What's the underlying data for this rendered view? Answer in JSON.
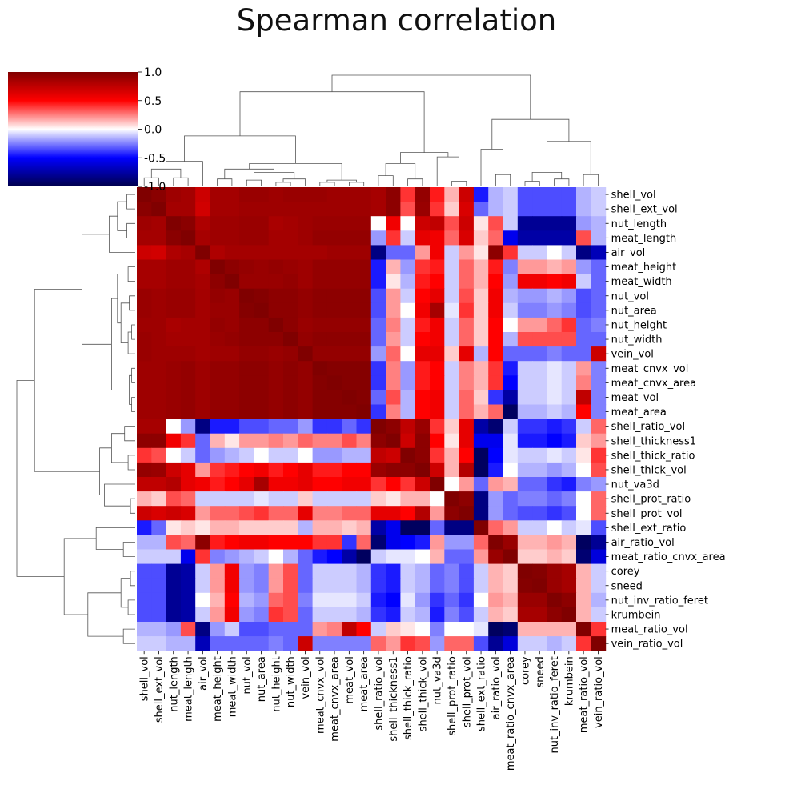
{
  "chart_data": {
    "type": "heatmap",
    "title": "Spearman correlation",
    "labels": [
      "shell_vol",
      "shell_ext_vol",
      "nut_length",
      "meat_length",
      "air_vol",
      "meat_height",
      "meat_width",
      "nut_vol",
      "nut_area",
      "nut_height",
      "nut_width",
      "vein_vol",
      "meat_cnvx_vol",
      "meat_cnvx_area",
      "meat_vol",
      "meat_area",
      "shell_ratio_vol",
      "shell_thickness1",
      "shell_thick_ratio",
      "shell_thick_vol",
      "nut_va3d",
      "shell_prot_ratio",
      "shell_prot_vol",
      "shell_ext_ratio",
      "air_ratio_vol",
      "meat_ratio_cnvx_area",
      "corey",
      "sneed",
      "nut_inv_ratio_feret",
      "krumbein",
      "meat_ratio_vol",
      "vein_ratio_vol"
    ],
    "colormap": "seismic",
    "vmin": -1.0,
    "vmax": 1.0,
    "colorbar_ticks": [
      "1.0",
      "0.5",
      "0.0",
      "-0.5",
      "-1.0"
    ],
    "values": [
      [
        1.0,
        0.96,
        0.88,
        0.86,
        0.7,
        0.86,
        0.86,
        0.9,
        0.9,
        0.88,
        0.9,
        0.9,
        0.9,
        0.88,
        0.88,
        0.88,
        0.85,
        0.95,
        0.4,
        0.92,
        0.45,
        0.15,
        0.7,
        -0.45,
        -0.15,
        -0.1,
        -0.35,
        -0.35,
        -0.35,
        -0.35,
        -0.15,
        -0.1
      ],
      [
        0.96,
        1.0,
        0.86,
        0.86,
        0.68,
        0.86,
        0.86,
        0.88,
        0.88,
        0.88,
        0.88,
        0.88,
        0.88,
        0.88,
        0.88,
        0.88,
        0.85,
        0.95,
        0.35,
        0.9,
        0.4,
        0.1,
        0.65,
        -0.3,
        -0.15,
        -0.1,
        -0.35,
        -0.35,
        -0.35,
        -0.35,
        -0.15,
        -0.1
      ],
      [
        0.88,
        0.86,
        1.0,
        0.96,
        0.82,
        0.88,
        0.88,
        0.9,
        0.9,
        0.84,
        0.86,
        0.88,
        0.9,
        0.9,
        0.9,
        0.9,
        0.0,
        0.55,
        0.0,
        0.7,
        0.75,
        0.35,
        0.7,
        0.05,
        0.35,
        -0.1,
        -0.8,
        -0.8,
        -0.8,
        -0.8,
        -0.2,
        -0.15
      ],
      [
        0.86,
        0.86,
        0.96,
        1.0,
        0.85,
        0.88,
        0.88,
        0.9,
        0.9,
        0.86,
        0.86,
        0.88,
        0.92,
        0.92,
        0.92,
        0.92,
        -0.2,
        0.4,
        -0.1,
        0.6,
        0.55,
        0.3,
        0.65,
        0.1,
        0.3,
        -0.55,
        -0.75,
        -0.75,
        -0.75,
        -0.75,
        0.35,
        -0.15
      ],
      [
        0.7,
        0.68,
        0.82,
        0.85,
        1.0,
        0.82,
        0.86,
        0.86,
        0.86,
        0.86,
        0.86,
        0.86,
        0.86,
        0.88,
        0.88,
        0.88,
        -0.85,
        -0.3,
        -0.3,
        0.2,
        0.55,
        -0.1,
        0.2,
        0.05,
        0.95,
        0.4,
        -0.1,
        -0.1,
        0.0,
        -0.1,
        -0.85,
        -0.7
      ],
      [
        0.85,
        0.85,
        0.88,
        0.88,
        0.82,
        1.0,
        0.95,
        0.92,
        0.9,
        0.92,
        0.9,
        0.88,
        0.92,
        0.92,
        0.92,
        0.92,
        -0.45,
        0.15,
        -0.2,
        0.4,
        0.45,
        -0.1,
        0.3,
        0.15,
        0.45,
        -0.25,
        0.2,
        0.2,
        0.15,
        0.2,
        -0.2,
        -0.3
      ],
      [
        0.85,
        0.85,
        0.88,
        0.88,
        0.85,
        0.95,
        1.0,
        0.9,
        0.9,
        0.9,
        0.92,
        0.88,
        0.92,
        0.92,
        0.92,
        0.92,
        -0.45,
        0.05,
        -0.15,
        0.45,
        0.5,
        -0.1,
        0.3,
        0.15,
        0.5,
        -0.2,
        0.55,
        0.55,
        0.5,
        0.55,
        -0.1,
        -0.3
      ],
      [
        0.9,
        0.88,
        0.9,
        0.9,
        0.86,
        0.92,
        0.9,
        1.0,
        0.98,
        0.95,
        0.95,
        0.92,
        0.95,
        0.95,
        0.95,
        0.95,
        -0.35,
        0.2,
        -0.1,
        0.5,
        0.6,
        -0.1,
        0.35,
        0.1,
        0.55,
        -0.15,
        -0.2,
        -0.2,
        -0.15,
        -0.2,
        -0.35,
        -0.3
      ],
      [
        0.9,
        0.88,
        0.9,
        0.9,
        0.86,
        0.9,
        0.9,
        0.98,
        1.0,
        0.95,
        0.95,
        0.92,
        0.95,
        0.95,
        0.95,
        0.95,
        -0.35,
        0.2,
        0.0,
        0.55,
        0.85,
        -0.05,
        0.4,
        0.1,
        0.55,
        -0.1,
        -0.25,
        -0.25,
        -0.2,
        -0.25,
        -0.35,
        -0.3
      ],
      [
        0.88,
        0.88,
        0.84,
        0.86,
        0.86,
        0.92,
        0.9,
        0.95,
        0.95,
        1.0,
        0.95,
        0.9,
        0.92,
        0.92,
        0.92,
        0.92,
        -0.3,
        0.25,
        -0.1,
        0.45,
        0.55,
        -0.1,
        0.3,
        0.1,
        0.5,
        0.0,
        0.2,
        0.2,
        0.3,
        0.4,
        -0.3,
        -0.25
      ],
      [
        0.9,
        0.88,
        0.86,
        0.86,
        0.86,
        0.9,
        0.92,
        0.95,
        0.95,
        0.95,
        1.0,
        0.92,
        0.95,
        0.95,
        0.95,
        0.95,
        -0.3,
        0.2,
        -0.1,
        0.5,
        0.55,
        -0.1,
        0.3,
        0.1,
        0.5,
        -0.15,
        0.35,
        0.35,
        0.35,
        0.35,
        -0.3,
        -0.3
      ],
      [
        0.9,
        0.88,
        0.88,
        0.88,
        0.86,
        0.88,
        0.88,
        0.92,
        0.92,
        0.9,
        0.92,
        1.0,
        0.92,
        0.92,
        0.92,
        0.92,
        -0.2,
        0.3,
        0.0,
        0.6,
        0.6,
        0.1,
        0.6,
        -0.15,
        0.5,
        -0.3,
        -0.3,
        -0.3,
        -0.25,
        -0.3,
        -0.3,
        0.7
      ],
      [
        0.88,
        0.88,
        0.9,
        0.92,
        0.88,
        0.92,
        0.92,
        0.95,
        0.95,
        0.92,
        0.95,
        0.92,
        1.0,
        0.98,
        0.98,
        0.98,
        -0.4,
        0.25,
        -0.2,
        0.45,
        0.5,
        -0.1,
        0.25,
        0.15,
        0.4,
        -0.45,
        -0.1,
        -0.1,
        -0.05,
        -0.1,
        0.2,
        -0.25
      ],
      [
        0.88,
        0.88,
        0.9,
        0.92,
        0.88,
        0.92,
        0.92,
        0.95,
        0.95,
        0.92,
        0.95,
        0.92,
        0.98,
        1.0,
        0.98,
        0.98,
        -0.4,
        0.25,
        -0.2,
        0.45,
        0.5,
        -0.1,
        0.25,
        0.15,
        0.4,
        -0.5,
        -0.1,
        -0.1,
        -0.05,
        -0.1,
        0.25,
        -0.25
      ],
      [
        0.88,
        0.88,
        0.9,
        0.92,
        0.88,
        0.92,
        0.92,
        0.95,
        0.95,
        0.92,
        0.95,
        0.92,
        0.98,
        0.98,
        1.0,
        0.98,
        -0.3,
        0.35,
        -0.15,
        0.5,
        0.55,
        -0.1,
        0.3,
        0.1,
        -0.4,
        -0.75,
        -0.1,
        -0.1,
        -0.05,
        -0.1,
        0.75,
        -0.25
      ],
      [
        0.88,
        0.88,
        0.9,
        0.92,
        0.88,
        0.92,
        0.92,
        0.95,
        0.95,
        0.92,
        0.95,
        0.92,
        0.98,
        0.98,
        0.98,
        1.0,
        -0.4,
        0.25,
        -0.15,
        0.5,
        0.55,
        -0.1,
        0.3,
        0.15,
        0.3,
        -0.95,
        -0.15,
        -0.15,
        -0.1,
        -0.15,
        0.5,
        -0.25
      ],
      [
        0.85,
        0.85,
        0.0,
        -0.2,
        -0.85,
        -0.45,
        -0.45,
        -0.35,
        -0.35,
        -0.3,
        -0.3,
        -0.2,
        -0.4,
        -0.4,
        -0.3,
        -0.4,
        1.0,
        0.95,
        0.75,
        0.9,
        0.4,
        0.1,
        0.6,
        -0.75,
        -0.9,
        -0.1,
        -0.4,
        -0.4,
        -0.45,
        -0.4,
        -0.1,
        0.3
      ],
      [
        0.95,
        0.95,
        0.55,
        0.4,
        -0.3,
        0.15,
        0.05,
        0.2,
        0.2,
        0.25,
        0.2,
        0.3,
        0.25,
        0.25,
        0.35,
        0.25,
        0.95,
        1.0,
        0.7,
        0.95,
        0.5,
        0.05,
        0.6,
        -0.55,
        -0.55,
        -0.05,
        -0.45,
        -0.45,
        -0.5,
        -0.45,
        0.1,
        0.2
      ],
      [
        0.4,
        0.35,
        0.0,
        -0.1,
        -0.3,
        -0.2,
        -0.15,
        -0.1,
        0.0,
        -0.1,
        -0.1,
        0.0,
        -0.2,
        -0.2,
        -0.15,
        -0.15,
        0.75,
        0.7,
        1.0,
        0.95,
        0.4,
        0.15,
        0.5,
        -0.95,
        -0.5,
        -0.05,
        -0.1,
        -0.1,
        -0.05,
        -0.1,
        0.05,
        0.4
      ],
      [
        0.92,
        0.9,
        0.7,
        0.6,
        0.2,
        0.4,
        0.45,
        0.5,
        0.55,
        0.45,
        0.5,
        0.6,
        0.45,
        0.45,
        0.5,
        0.5,
        0.9,
        0.95,
        0.95,
        1.0,
        0.7,
        0.15,
        0.8,
        -0.95,
        -0.45,
        0.0,
        -0.15,
        -0.15,
        -0.2,
        -0.15,
        0.0,
        0.35
      ],
      [
        0.75,
        0.75,
        0.8,
        0.6,
        0.55,
        0.45,
        0.5,
        0.6,
        0.85,
        0.55,
        0.55,
        0.6,
        0.5,
        0.5,
        0.55,
        0.55,
        0.4,
        0.5,
        0.4,
        0.7,
        1.0,
        0.0,
        0.2,
        -0.3,
        0.2,
        0.15,
        -0.3,
        -0.3,
        -0.4,
        -0.45,
        -0.25,
        -0.2
      ],
      [
        0.15,
        0.1,
        0.35,
        0.3,
        -0.1,
        -0.1,
        -0.1,
        -0.1,
        -0.05,
        -0.1,
        -0.1,
        0.1,
        -0.1,
        -0.1,
        -0.1,
        -0.1,
        0.1,
        0.05,
        0.15,
        0.15,
        0.0,
        1.0,
        0.95,
        -0.85,
        -0.2,
        -0.3,
        -0.25,
        -0.25,
        -0.3,
        -0.25,
        0.0,
        0.3
      ],
      [
        0.7,
        0.65,
        0.7,
        0.65,
        0.2,
        0.3,
        0.3,
        0.35,
        0.4,
        0.3,
        0.3,
        0.6,
        0.25,
        0.25,
        0.3,
        0.3,
        0.6,
        0.6,
        0.5,
        0.8,
        0.2,
        0.95,
        1.0,
        -0.85,
        -0.2,
        -0.3,
        -0.35,
        -0.35,
        -0.4,
        -0.35,
        0.0,
        0.3
      ],
      [
        -0.45,
        -0.3,
        0.05,
        0.1,
        0.05,
        0.15,
        0.15,
        0.1,
        0.1,
        0.1,
        0.1,
        -0.15,
        0.15,
        0.15,
        0.1,
        0.15,
        -0.75,
        -0.55,
        -0.95,
        -0.95,
        -0.3,
        -0.85,
        -0.85,
        1.0,
        0.3,
        0.2,
        -0.1,
        -0.1,
        0.0,
        -0.1,
        -0.05,
        -0.35
      ],
      [
        -0.15,
        -0.15,
        0.35,
        0.3,
        0.95,
        0.45,
        0.5,
        0.55,
        0.55,
        0.5,
        0.5,
        0.5,
        0.4,
        0.4,
        -0.4,
        0.3,
        -0.9,
        -0.55,
        -0.5,
        -0.45,
        0.2,
        -0.2,
        -0.2,
        0.3,
        1.0,
        0.9,
        0.15,
        0.15,
        0.2,
        0.15,
        -0.95,
        -0.8
      ],
      [
        -0.1,
        -0.1,
        -0.1,
        -0.55,
        0.4,
        -0.25,
        -0.2,
        -0.15,
        -0.1,
        0.0,
        -0.15,
        -0.3,
        -0.45,
        -0.5,
        -0.75,
        -0.95,
        -0.1,
        -0.05,
        -0.05,
        0.0,
        0.15,
        -0.3,
        -0.3,
        0.2,
        0.9,
        1.0,
        0.1,
        0.1,
        0.15,
        0.1,
        -0.9,
        -0.6
      ],
      [
        -0.35,
        -0.35,
        -0.8,
        -0.75,
        -0.1,
        0.2,
        0.55,
        -0.2,
        -0.25,
        0.2,
        0.35,
        -0.3,
        -0.1,
        -0.1,
        -0.1,
        -0.15,
        -0.4,
        -0.45,
        -0.1,
        -0.15,
        -0.3,
        -0.25,
        -0.35,
        -0.1,
        0.15,
        0.1,
        1.0,
        0.98,
        0.9,
        0.85,
        0.15,
        -0.1
      ],
      [
        -0.35,
        -0.35,
        -0.8,
        -0.75,
        -0.1,
        0.2,
        0.55,
        -0.2,
        -0.25,
        0.2,
        0.35,
        -0.3,
        -0.1,
        -0.1,
        -0.1,
        -0.15,
        -0.4,
        -0.45,
        -0.1,
        -0.15,
        -0.3,
        -0.25,
        -0.35,
        -0.1,
        0.15,
        0.1,
        0.98,
        1.0,
        0.9,
        0.85,
        0.15,
        -0.1
      ],
      [
        -0.35,
        -0.35,
        -0.8,
        -0.75,
        0.0,
        0.15,
        0.5,
        -0.15,
        -0.2,
        0.3,
        0.35,
        -0.25,
        -0.05,
        -0.05,
        -0.05,
        -0.1,
        -0.45,
        -0.5,
        -0.05,
        -0.2,
        -0.4,
        -0.3,
        -0.4,
        0.0,
        0.2,
        0.15,
        0.9,
        0.9,
        1.0,
        0.95,
        0.15,
        -0.15
      ],
      [
        -0.35,
        -0.35,
        -0.8,
        -0.75,
        -0.1,
        0.2,
        0.55,
        -0.2,
        -0.25,
        0.4,
        0.35,
        -0.3,
        -0.1,
        -0.1,
        -0.1,
        -0.15,
        -0.4,
        -0.45,
        -0.1,
        -0.15,
        -0.45,
        -0.25,
        -0.35,
        -0.1,
        0.15,
        0.1,
        0.85,
        0.85,
        0.95,
        1.0,
        0.15,
        -0.1
      ],
      [
        -0.15,
        -0.15,
        -0.2,
        0.35,
        -0.85,
        -0.2,
        -0.1,
        -0.35,
        -0.35,
        -0.3,
        -0.3,
        -0.3,
        0.2,
        0.25,
        0.75,
        0.5,
        -0.1,
        0.1,
        0.05,
        0.0,
        -0.25,
        0.0,
        0.0,
        -0.05,
        -0.95,
        -0.9,
        0.15,
        0.15,
        0.15,
        0.15,
        1.0,
        0.4
      ],
      [
        -0.1,
        -0.1,
        -0.15,
        -0.15,
        -0.7,
        -0.3,
        -0.3,
        -0.3,
        -0.3,
        -0.25,
        -0.3,
        0.7,
        -0.25,
        -0.25,
        -0.25,
        -0.25,
        0.3,
        0.2,
        0.4,
        0.35,
        -0.2,
        0.3,
        0.3,
        -0.35,
        -0.8,
        -0.6,
        -0.1,
        -0.1,
        -0.15,
        -0.1,
        0.4,
        1.0
      ]
    ]
  }
}
